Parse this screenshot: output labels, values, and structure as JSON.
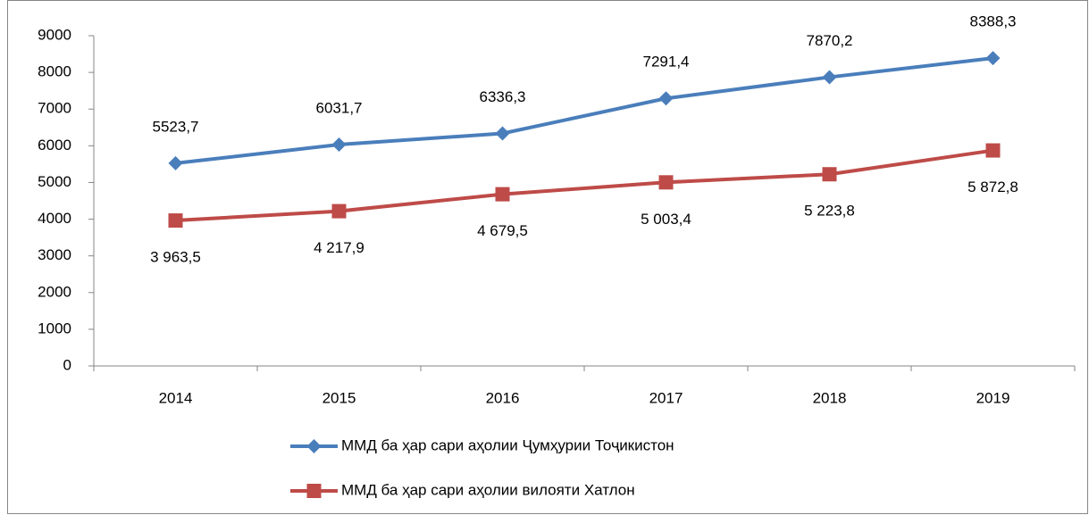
{
  "chart_data": {
    "type": "line",
    "categories": [
      "2014",
      "2015",
      "2016",
      "2017",
      "2018",
      "2019"
    ],
    "series": [
      {
        "name": "ММД ба ҳар сари аҳолии Ҷумҳурии Тоҷикистон",
        "color": "#4a7ebb",
        "marker": "diamond",
        "values": [
          5523.7,
          6031.7,
          6336.3,
          7291.4,
          7870.2,
          8388.3
        ],
        "value_labels": [
          "5523,7",
          "6031,7",
          "6336,3",
          "7291,4",
          "7870,2",
          "8388,3"
        ]
      },
      {
        "name": "ММД ба ҳар сари аҳолии вилояти Хатлон",
        "color": "#be4b48",
        "marker": "square",
        "values": [
          3963.5,
          4217.9,
          4679.5,
          5003.4,
          5223.8,
          5872.8
        ],
        "value_labels": [
          "3 963,5",
          "4 217,9",
          "4 679,5",
          "5 003,4",
          "5 223,8",
          "5 872,8"
        ]
      }
    ],
    "ylim": [
      0,
      9000
    ],
    "yticks": [
      0,
      1000,
      2000,
      3000,
      4000,
      5000,
      6000,
      7000,
      8000,
      9000
    ],
    "grid": false,
    "legend": "bottom"
  }
}
